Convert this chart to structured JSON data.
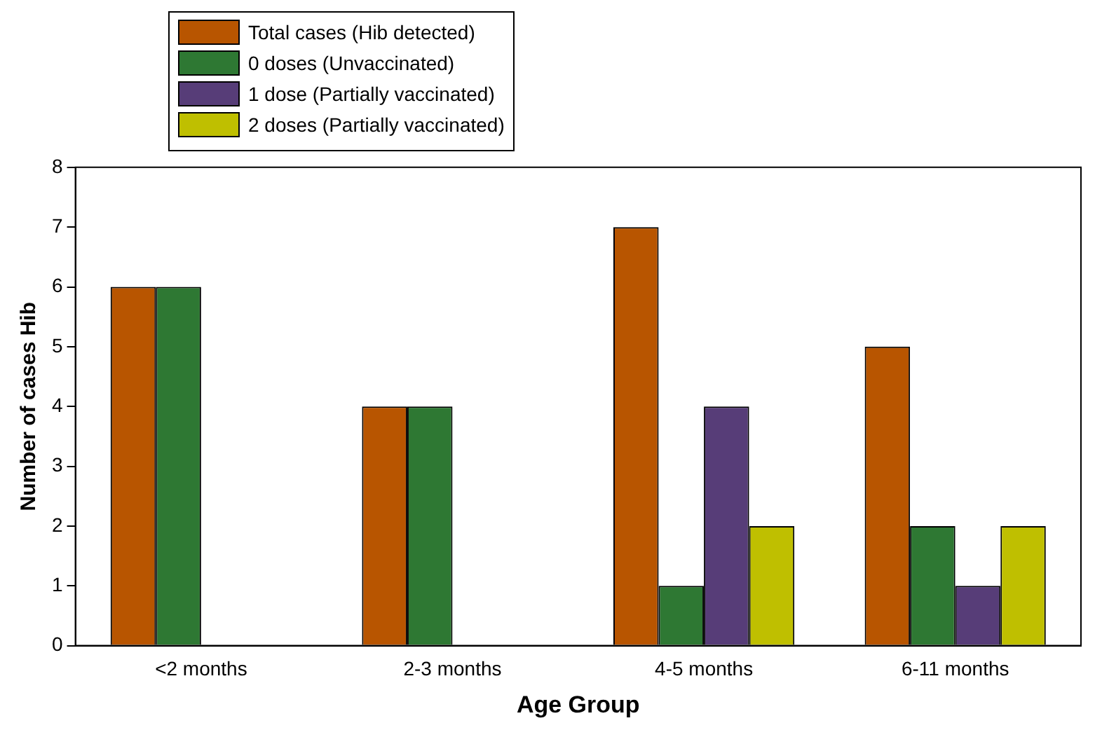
{
  "chart_data": {
    "type": "bar",
    "xlabel": "Age Group",
    "ylabel": "Number of cases Hib",
    "categories": [
      "<2 months",
      "2-3 months",
      "4-5 months",
      "6-11 months"
    ],
    "series": [
      {
        "name": "Total cases (Hib detected)",
        "color": "#b85500",
        "values": [
          6,
          4,
          7,
          5
        ]
      },
      {
        "name": "0 doses (Unvaccinated)",
        "color": "#2e7833",
        "values": [
          6,
          4,
          1,
          2
        ]
      },
      {
        "name": "1 dose (Partially vaccinated)",
        "color": "#573d78",
        "values": [
          0,
          0,
          4,
          1
        ]
      },
      {
        "name": "2 doses (Partially vaccinated)",
        "color": "#bfbf00",
        "values": [
          0,
          0,
          2,
          2
        ]
      }
    ],
    "ylim": [
      0,
      8
    ],
    "yticks": [
      0,
      1,
      2,
      3,
      4,
      5,
      6,
      7,
      8
    ],
    "grid": false,
    "legend": "top left"
  }
}
